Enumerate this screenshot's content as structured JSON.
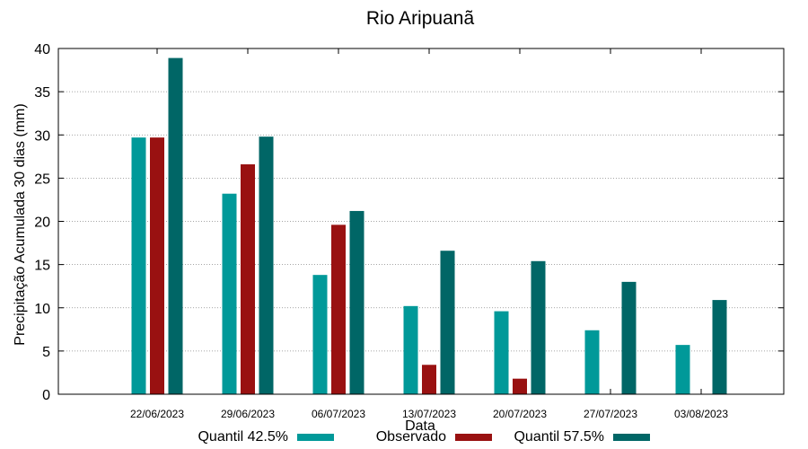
{
  "chart_data": {
    "type": "bar",
    "title": "Rio Aripuanã",
    "xlabel": "Data",
    "ylabel": "Precipitação Acumulada 30 dias (mm)",
    "ylim": [
      0,
      40
    ],
    "yticks": [
      0,
      5,
      10,
      15,
      20,
      25,
      30,
      35,
      40
    ],
    "grid": true,
    "legend_position": "bottom",
    "categories": [
      "22/06/2023",
      "29/06/2023",
      "06/07/2023",
      "13/07/2023",
      "20/07/2023",
      "27/07/2023",
      "03/08/2023"
    ],
    "series": [
      {
        "name": "Quantil 42.5%",
        "color": "#009999",
        "values": [
          29.7,
          23.2,
          13.8,
          10.2,
          9.6,
          7.4,
          5.7
        ]
      },
      {
        "name": "Observado",
        "color": "#991111",
        "values": [
          29.7,
          26.6,
          19.6,
          3.4,
          1.8,
          null,
          null
        ]
      },
      {
        "name": "Quantil 57.5%",
        "color": "#006666",
        "values": [
          38.9,
          29.8,
          21.2,
          16.6,
          15.4,
          13.0,
          10.9
        ]
      }
    ]
  }
}
